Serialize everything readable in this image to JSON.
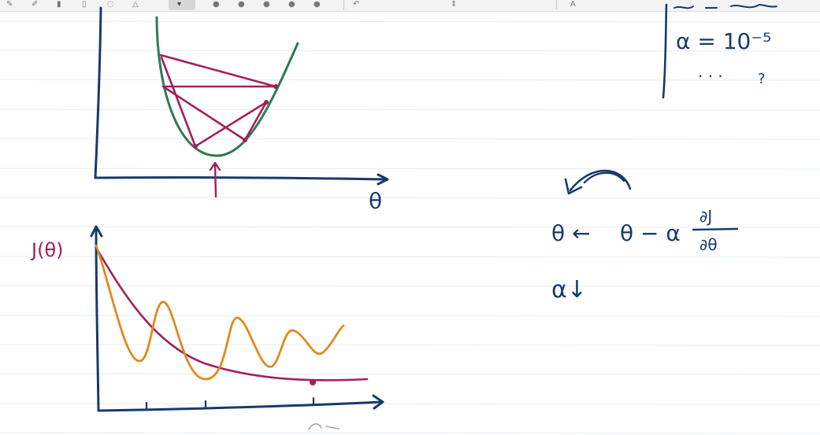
{
  "top_graph": {
    "x_axis_label": "θ"
  },
  "bottom_graph": {
    "y_axis_label": "J(θ)"
  },
  "notes": {
    "alpha_line": "α = 10⁻⁵",
    "ellipsis": ". . .",
    "question_mark": "?",
    "update_rule_lhs": "θ ←",
    "update_rule_rhs": "θ − α",
    "fraction_numerator": "∂J",
    "fraction_denominator": "∂θ",
    "alpha_decrease": "α↓"
  },
  "colors": {
    "ink_navy": "#173a6b",
    "curve_green": "#2e7a55",
    "steps_magenta": "#a3205c",
    "oscillation_orange": "#e08a1e",
    "rule_line": "#e6ecf2"
  }
}
